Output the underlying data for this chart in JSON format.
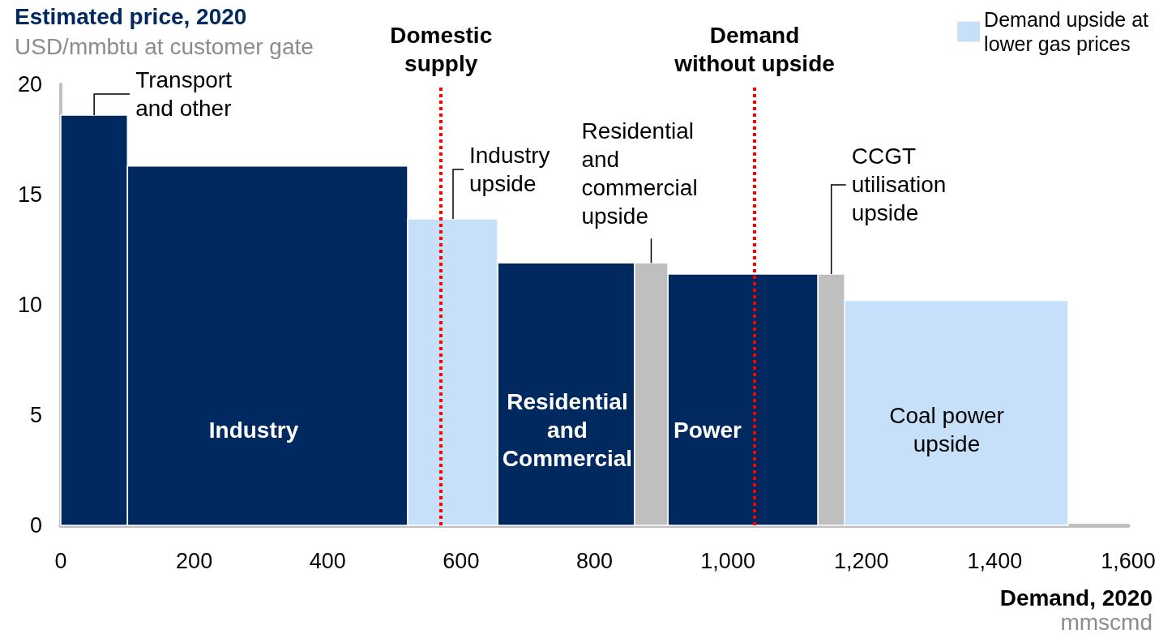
{
  "chart_data": {
    "type": "histogram",
    "ylabel": "Estimated price, 2020\nUSD/mmbtu at customer gate",
    "xlabel": "Demand, 2020\nmmscmd",
    "bins": [
      0,
      100,
      520,
      655,
      860,
      910,
      1135,
      1175,
      1510
    ],
    "series": [
      {
        "color": "#002960",
        "values": [
          18.6,
          16.3,
          null,
          11.9,
          null,
          11.4,
          null,
          null
        ]
      },
      {
        "name": "Demand upside at lower gas prices",
        "color": "#c6e0f9",
        "values": [
          null,
          null,
          13.9,
          null,
          null,
          null,
          null,
          10.2
        ]
      },
      {
        "color": "#bfbfbf",
        "values": [
          null,
          null,
          null,
          null,
          11.9,
          null,
          11.4,
          null
        ]
      }
    ],
    "xlim": [
      0,
      1600
    ],
    "xticks": [
      0,
      200,
      400,
      600,
      800,
      {
        "value": 1000,
        "label": "1,000"
      },
      {
        "value": 1200,
        "label": "1,200"
      },
      {
        "value": 1400,
        "label": "1,400"
      },
      {
        "value": 1600,
        "label": "1,600"
      }
    ],
    "ylim": [
      0,
      20
    ],
    "yticks": [
      0,
      5,
      10,
      15,
      20
    ],
    "ref_lines": [
      {
        "axis": "x",
        "value": 570,
        "label": "Domestic supply",
        "color": "#ff0000",
        "line_style": "dotted"
      },
      {
        "axis": "x",
        "value": 1040,
        "label": "Demand without upside",
        "color": "#ff0000",
        "line_style": "dotted"
      }
    ],
    "annotations": [
      {
        "text": "Transport and other",
        "x": 50,
        "y": 18.6
      },
      {
        "text": "Industry upside",
        "x": 588,
        "y": 13.9
      },
      {
        "text": "Residential and commercial upside",
        "x": 885,
        "y": 11.9
      },
      {
        "text": "CCGT utilisation upside",
        "x": 1155,
        "y": 11.4
      },
      "Industry",
      "Residential and Commercial",
      "Power",
      "Coal power upside"
    ],
    "legend": "top right"
  }
}
